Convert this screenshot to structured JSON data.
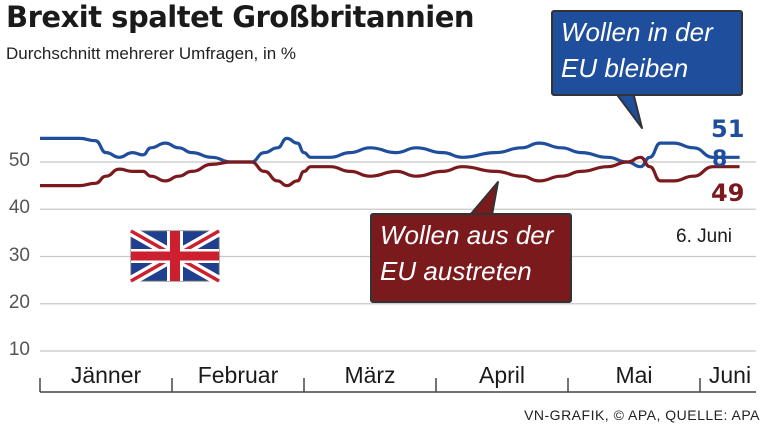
{
  "title": "Brexit spaltet Großbritannien",
  "subtitle": "Durchschnitt mehrerer Umfragen, in %",
  "callouts": {
    "remain": [
      "Wollen in der",
      "EU bleiben"
    ],
    "leave": [
      "Wollen aus der",
      "EU austreten"
    ]
  },
  "end_labels": {
    "remain": "51",
    "undecided": "8",
    "leave": "49",
    "date": "6. Juni"
  },
  "source": "VN-GRAFIK, © APA, QUELLE: APA",
  "colors": {
    "remain": "#1f4e9c",
    "leave": "#7b1a1d",
    "grid": "#c8c8c8",
    "axis": "#444444"
  },
  "chart_data": {
    "type": "line",
    "title": "Brexit spaltet Großbritannien",
    "subtitle": "Durchschnitt mehrerer Umfragen, in %",
    "xlabel": "",
    "ylabel": "",
    "ylim": [
      10,
      55
    ],
    "yticks": [
      10,
      20,
      30,
      40,
      50
    ],
    "grid": true,
    "categories": [
      "Jänner",
      "Februar",
      "März",
      "April",
      "Mai",
      "Juni"
    ],
    "x_range": [
      0,
      5.4
    ],
    "series": [
      {
        "name": "Wollen in der EU bleiben",
        "color": "#1f4e9c",
        "points": [
          [
            0,
            55
          ],
          [
            0.3,
            55
          ],
          [
            0.42,
            54.5
          ],
          [
            0.5,
            52
          ],
          [
            0.6,
            51
          ],
          [
            0.7,
            52
          ],
          [
            0.78,
            51.5
          ],
          [
            0.84,
            53
          ],
          [
            0.95,
            54
          ],
          [
            1.05,
            53
          ],
          [
            1.15,
            52
          ],
          [
            1.3,
            51
          ],
          [
            1.45,
            50
          ],
          [
            1.6,
            50
          ],
          [
            1.7,
            52
          ],
          [
            1.8,
            53
          ],
          [
            1.87,
            55
          ],
          [
            1.95,
            54
          ],
          [
            2.0,
            52
          ],
          [
            2.05,
            51
          ],
          [
            2.2,
            51
          ],
          [
            2.35,
            52
          ],
          [
            2.5,
            53
          ],
          [
            2.7,
            52
          ],
          [
            2.85,
            53
          ],
          [
            3.05,
            52
          ],
          [
            3.2,
            51
          ],
          [
            3.45,
            52
          ],
          [
            3.65,
            53
          ],
          [
            3.78,
            54
          ],
          [
            3.95,
            53
          ],
          [
            4.1,
            52
          ],
          [
            4.3,
            51
          ],
          [
            4.45,
            50
          ],
          [
            4.55,
            49
          ],
          [
            4.62,
            51
          ],
          [
            4.7,
            54
          ],
          [
            4.8,
            54
          ],
          [
            4.95,
            53
          ],
          [
            5.1,
            51
          ],
          [
            5.3,
            51
          ]
        ]
      },
      {
        "name": "Wollen aus der EU austreten",
        "color": "#7b1a1d",
        "points": [
          [
            0,
            45
          ],
          [
            0.3,
            45
          ],
          [
            0.42,
            45.5
          ],
          [
            0.5,
            47
          ],
          [
            0.6,
            48.5
          ],
          [
            0.7,
            48
          ],
          [
            0.78,
            48
          ],
          [
            0.84,
            47
          ],
          [
            0.95,
            46
          ],
          [
            1.05,
            47
          ],
          [
            1.15,
            48
          ],
          [
            1.3,
            49.5
          ],
          [
            1.45,
            50
          ],
          [
            1.6,
            50
          ],
          [
            1.7,
            48
          ],
          [
            1.8,
            46
          ],
          [
            1.87,
            45
          ],
          [
            1.95,
            46
          ],
          [
            2.0,
            48
          ],
          [
            2.05,
            49
          ],
          [
            2.2,
            49
          ],
          [
            2.35,
            48
          ],
          [
            2.5,
            47
          ],
          [
            2.7,
            48
          ],
          [
            2.85,
            47
          ],
          [
            3.05,
            48
          ],
          [
            3.2,
            49
          ],
          [
            3.45,
            48
          ],
          [
            3.65,
            47
          ],
          [
            3.78,
            46
          ],
          [
            3.95,
            47
          ],
          [
            4.1,
            48
          ],
          [
            4.3,
            49
          ],
          [
            4.45,
            50
          ],
          [
            4.55,
            51
          ],
          [
            4.62,
            49
          ],
          [
            4.7,
            46
          ],
          [
            4.8,
            46
          ],
          [
            4.95,
            47
          ],
          [
            5.1,
            49
          ],
          [
            5.3,
            49
          ]
        ]
      }
    ],
    "final_values": {
      "Wollen in der EU bleiben": 51,
      "Unentschlossen": 8,
      "Wollen aus der EU austreten": 49
    },
    "annotation": "6. Juni"
  }
}
